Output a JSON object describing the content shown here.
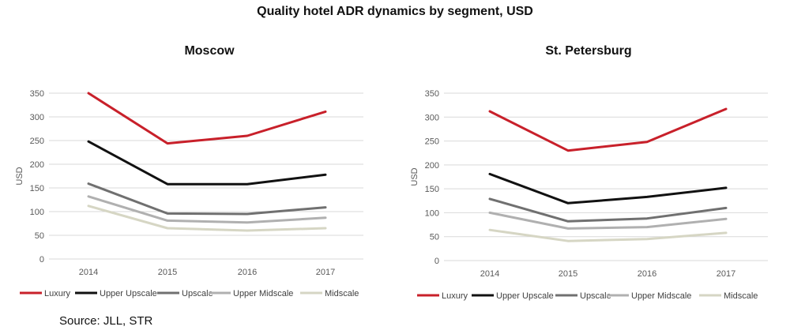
{
  "title": "Quality hotel ADR dynamics by segment, USD",
  "source": "Source: JLL, STR",
  "colors": {
    "Luxury": "#c8202a",
    "Upper Upscale": "#111111",
    "Upscale": "#707070",
    "Upper Midscale": "#b0b0b0",
    "Midscale": "#d6d6c4"
  },
  "chart_data": [
    {
      "type": "line",
      "title": "Moscow",
      "xlabel": "",
      "ylabel": "USD",
      "categories": [
        "2014",
        "2015",
        "2016",
        "2017"
      ],
      "ylim": [
        0,
        350
      ],
      "yticks": [
        0,
        50,
        100,
        150,
        200,
        250,
        300,
        350
      ],
      "grid": true,
      "legend": "bottom",
      "series": [
        {
          "name": "Luxury",
          "values": [
            350,
            244,
            260,
            311
          ]
        },
        {
          "name": "Upper Upscale",
          "values": [
            248,
            158,
            158,
            178
          ]
        },
        {
          "name": "Upscale",
          "values": [
            159,
            96,
            95,
            109
          ]
        },
        {
          "name": "Upper Midscale",
          "values": [
            132,
            81,
            77,
            87
          ]
        },
        {
          "name": "Midscale",
          "values": [
            112,
            65,
            60,
            65
          ]
        }
      ]
    },
    {
      "type": "line",
      "title": "St. Petersburg",
      "xlabel": "",
      "ylabel": "USD",
      "categories": [
        "2014",
        "2015",
        "2016",
        "2017"
      ],
      "ylim": [
        0,
        350
      ],
      "yticks": [
        0,
        50,
        100,
        150,
        200,
        250,
        300,
        350
      ],
      "grid": true,
      "legend": "bottom",
      "series": [
        {
          "name": "Luxury",
          "values": [
            312,
            230,
            248,
            317
          ]
        },
        {
          "name": "Upper Upscale",
          "values": [
            181,
            120,
            133,
            152
          ]
        },
        {
          "name": "Upscale",
          "values": [
            129,
            82,
            88,
            110
          ]
        },
        {
          "name": "Upper Midscale",
          "values": [
            100,
            67,
            70,
            87
          ]
        },
        {
          "name": "Midscale",
          "values": [
            64,
            41,
            45,
            58
          ]
        }
      ]
    }
  ]
}
